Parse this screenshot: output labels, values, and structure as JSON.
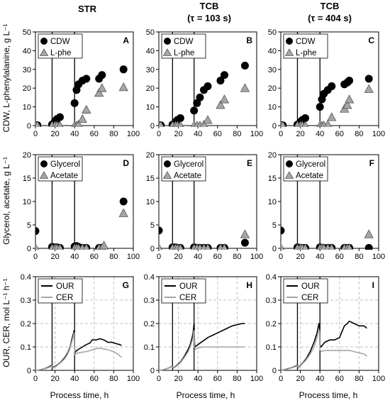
{
  "column_titles": [
    {
      "line1": "STR",
      "line2": ""
    },
    {
      "line1": "TCB",
      "line2": "(τ = 103 s)"
    },
    {
      "line1": "TCB",
      "line2": "(τ = 404 s)"
    }
  ],
  "row_ylabels": [
    "CDW, L-phenylalanine, g L⁻¹",
    "Glycerol, acetate, g L⁻¹",
    "OUR, CER, mol L⁻¹ h⁻¹"
  ],
  "xlabel": "Process time, h",
  "colors": {
    "cdw": "#000000",
    "lphe": "#a6a6a6",
    "our": "#000000",
    "cer": "#a6a6a6",
    "grid": "#bfbfbf"
  },
  "chart_data": [
    {
      "type": "scatter",
      "panel": "A",
      "row": 0,
      "col": 0,
      "xlim": [
        0,
        100
      ],
      "ylim": [
        0,
        50
      ],
      "xticks": [
        0,
        20,
        40,
        60,
        80,
        100
      ],
      "yticks": [
        0,
        10,
        20,
        30,
        40,
        50
      ],
      "ytick_labels": [
        "0",
        "10",
        "20",
        "30",
        "40",
        "50"
      ],
      "vlines": [
        17,
        40
      ],
      "series": [
        {
          "name": "CDW",
          "marker": "circle",
          "x": [
            0,
            2,
            17,
            20,
            22,
            25,
            40,
            42,
            44,
            48,
            52,
            65,
            68,
            90
          ],
          "y": [
            0.2,
            0.2,
            0.6,
            2.5,
            3.5,
            4.5,
            12,
            19,
            22,
            24,
            25,
            25,
            27,
            30
          ]
        },
        {
          "name": "L-phe",
          "marker": "triangle",
          "x": [
            0,
            2,
            17,
            20,
            22,
            25,
            40,
            42,
            44,
            48,
            52,
            65,
            68,
            90
          ],
          "y": [
            0,
            0,
            0,
            0,
            0,
            0,
            0,
            0,
            0.5,
            3.5,
            8.5,
            17.5,
            20,
            20.5
          ]
        }
      ]
    },
    {
      "type": "scatter",
      "panel": "B",
      "row": 0,
      "col": 1,
      "xlim": [
        0,
        100
      ],
      "ylim": [
        0,
        50
      ],
      "xticks": [
        0,
        20,
        40,
        60,
        80,
        100
      ],
      "yticks": [
        0,
        10,
        20,
        30,
        40,
        50
      ],
      "ytick_labels": [
        "0",
        "10",
        "20",
        "30",
        "40",
        "50"
      ],
      "vlines": [
        14,
        36
      ],
      "series": [
        {
          "name": "CDW",
          "marker": "circle",
          "x": [
            0,
            2,
            14,
            17,
            19,
            22,
            36,
            39,
            42,
            46,
            50,
            63,
            67,
            88
          ],
          "y": [
            0.2,
            0.2,
            0.5,
            2,
            3,
            4,
            8,
            12,
            15,
            19,
            21,
            24,
            27,
            32
          ]
        },
        {
          "name": "L-phe",
          "marker": "triangle",
          "x": [
            0,
            2,
            14,
            17,
            19,
            22,
            36,
            39,
            42,
            46,
            50,
            63,
            67,
            88
          ],
          "y": [
            0,
            0,
            0,
            0,
            0,
            0,
            0,
            0,
            0,
            0.5,
            3,
            11,
            14,
            20
          ]
        }
      ]
    },
    {
      "type": "scatter",
      "panel": "C",
      "row": 0,
      "col": 2,
      "xlim": [
        0,
        100
      ],
      "ylim": [
        0,
        50
      ],
      "xticks": [
        0,
        20,
        40,
        60,
        80,
        100
      ],
      "yticks": [
        0,
        10,
        20,
        30,
        40,
        50
      ],
      "ytick_labels": [
        "0",
        "10",
        "20",
        "30",
        "40",
        "50"
      ],
      "vlines": [
        17,
        40
      ],
      "series": [
        {
          "name": "CDW",
          "marker": "circle",
          "x": [
            0,
            2,
            17,
            20,
            22,
            25,
            40,
            42,
            44,
            48,
            52,
            65,
            68,
            70,
            90
          ],
          "y": [
            0.2,
            0.2,
            0.5,
            2,
            3,
            4,
            10,
            14,
            17,
            19,
            21,
            22,
            23,
            24,
            25
          ]
        },
        {
          "name": "L-phe",
          "marker": "triangle",
          "x": [
            0,
            2,
            17,
            20,
            22,
            25,
            40,
            42,
            44,
            48,
            52,
            65,
            68,
            70,
            90
          ],
          "y": [
            0,
            0,
            0,
            0,
            0,
            0,
            0,
            0,
            0,
            0.5,
            4.5,
            9,
            11,
            14,
            19.5
          ]
        }
      ]
    },
    {
      "type": "scatter",
      "panel": "D",
      "row": 1,
      "col": 0,
      "xlim": [
        0,
        100
      ],
      "ylim": [
        0,
        20
      ],
      "xticks": [
        0,
        20,
        40,
        60,
        80,
        100
      ],
      "yticks": [
        0,
        5,
        10,
        15,
        20
      ],
      "ytick_labels": [
        "0",
        "5",
        "10",
        "15",
        "20"
      ],
      "vlines": [
        17,
        40
      ],
      "series": [
        {
          "name": "Glycerol",
          "marker": "circle",
          "x": [
            0,
            17,
            20,
            22,
            25,
            40,
            42,
            44,
            48,
            52,
            65,
            68,
            90
          ],
          "y": [
            3.7,
            0.3,
            0.2,
            0.2,
            0.1,
            0.4,
            0.5,
            0.3,
            0.1,
            0.1,
            0.1,
            0.1,
            10
          ]
        },
        {
          "name": "Acetate",
          "marker": "triangle",
          "x": [
            0,
            17,
            20,
            22,
            25,
            40,
            42,
            44,
            48,
            52,
            65,
            68,
            70,
            90
          ],
          "y": [
            0.1,
            0,
            0,
            0,
            0,
            0,
            0,
            0,
            0,
            0,
            0,
            0.1,
            0.6,
            7.5
          ]
        }
      ]
    },
    {
      "type": "scatter",
      "panel": "E",
      "row": 1,
      "col": 1,
      "xlim": [
        0,
        100
      ],
      "ylim": [
        0,
        20
      ],
      "xticks": [
        0,
        20,
        40,
        60,
        80,
        100
      ],
      "yticks": [
        0,
        5,
        10,
        15,
        20
      ],
      "ytick_labels": [
        "0",
        "5",
        "10",
        "15",
        "20"
      ],
      "vlines": [
        14,
        36
      ],
      "series": [
        {
          "name": "Glycerol",
          "marker": "circle",
          "x": [
            0,
            14,
            17,
            19,
            22,
            36,
            39,
            42,
            46,
            50,
            63,
            67,
            88
          ],
          "y": [
            3.8,
            0.2,
            0.2,
            0.1,
            0.1,
            0.2,
            0.1,
            0.1,
            0.1,
            0.1,
            0.1,
            0.1,
            1.2
          ]
        },
        {
          "name": "Acetate",
          "marker": "triangle",
          "x": [
            0,
            14,
            17,
            19,
            22,
            36,
            39,
            42,
            46,
            50,
            63,
            67,
            88
          ],
          "y": [
            0.1,
            0,
            0,
            0,
            0,
            0,
            0,
            0,
            0,
            0,
            0,
            0,
            3
          ]
        }
      ]
    },
    {
      "type": "scatter",
      "panel": "F",
      "row": 1,
      "col": 2,
      "xlim": [
        0,
        100
      ],
      "ylim": [
        0,
        20
      ],
      "xticks": [
        0,
        20,
        40,
        60,
        80,
        100
      ],
      "yticks": [
        0,
        5,
        10,
        15,
        20
      ],
      "ytick_labels": [
        "0",
        "5",
        "10",
        "15",
        "20"
      ],
      "vlines": [
        17,
        40
      ],
      "series": [
        {
          "name": "Glycerol",
          "marker": "circle",
          "x": [
            0,
            17,
            20,
            22,
            25,
            40,
            42,
            44,
            48,
            52,
            65,
            68,
            70,
            90
          ],
          "y": [
            3.8,
            0.2,
            0.1,
            0.1,
            0.1,
            0.2,
            0.1,
            0.1,
            0.1,
            0.1,
            0.1,
            0.1,
            0.1,
            0.1
          ]
        },
        {
          "name": "Acetate",
          "marker": "triangle",
          "x": [
            0,
            17,
            20,
            22,
            25,
            40,
            42,
            44,
            48,
            52,
            65,
            68,
            70,
            90
          ],
          "y": [
            0.1,
            0,
            0,
            0,
            0,
            0,
            0,
            0,
            0,
            0,
            0,
            0,
            0,
            3
          ]
        }
      ]
    },
    {
      "type": "line",
      "panel": "G",
      "row": 2,
      "col": 0,
      "xlim": [
        0,
        100
      ],
      "ylim": [
        0,
        0.4
      ],
      "xticks": [
        0,
        20,
        40,
        60,
        80,
        100
      ],
      "yticks": [
        0,
        0.1,
        0.2,
        0.3,
        0.4
      ],
      "ytick_labels": [
        "0",
        "0.1",
        "0.2",
        "0.3",
        "0.4"
      ],
      "vlines": [
        17,
        40
      ],
      "series": [
        {
          "name": "OUR",
          "x": [
            0,
            5,
            10,
            14,
            16,
            17,
            18,
            22,
            26,
            30,
            33,
            35,
            36,
            37,
            38,
            39,
            39.5,
            40,
            40.5,
            41,
            44,
            48,
            52,
            56,
            58,
            62,
            66,
            70,
            74,
            78,
            82,
            86,
            88
          ],
          "y": [
            0,
            0.003,
            0.008,
            0.015,
            0.02,
            0.022,
            0.012,
            0.022,
            0.036,
            0.055,
            0.075,
            0.095,
            0.11,
            0.13,
            0.145,
            0.16,
            0.17,
            0.1,
            0.07,
            0.08,
            0.09,
            0.1,
            0.11,
            0.118,
            0.13,
            0.13,
            0.135,
            0.13,
            0.12,
            0.12,
            0.115,
            0.11,
            0.107
          ]
        },
        {
          "name": "CER",
          "x": [
            0,
            5,
            10,
            14,
            16,
            17,
            18,
            22,
            26,
            30,
            33,
            35,
            36,
            37,
            38,
            39,
            39.5,
            40,
            40.5,
            41,
            44,
            48,
            52,
            56,
            60,
            64,
            68,
            72,
            76,
            80,
            84,
            88
          ],
          "y": [
            0,
            0.003,
            0.007,
            0.013,
            0.017,
            0.02,
            0.01,
            0.02,
            0.034,
            0.05,
            0.07,
            0.09,
            0.105,
            0.12,
            0.135,
            0.15,
            0.16,
            0.09,
            0.065,
            0.07,
            0.075,
            0.078,
            0.08,
            0.085,
            0.09,
            0.095,
            0.093,
            0.09,
            0.085,
            0.08,
            0.07,
            0.055
          ]
        }
      ]
    },
    {
      "type": "line",
      "panel": "H",
      "row": 2,
      "col": 1,
      "xlim": [
        0,
        100
      ],
      "ylim": [
        0,
        0.4
      ],
      "xticks": [
        0,
        20,
        40,
        60,
        80,
        100
      ],
      "yticks": [
        0,
        0.1,
        0.2,
        0.3,
        0.4
      ],
      "ytick_labels": [
        "0",
        "0.1",
        "0.2",
        "0.3",
        "0.4"
      ],
      "vlines": [
        14,
        36
      ],
      "series": [
        {
          "name": "OUR",
          "x": [
            0,
            5,
            10,
            13,
            14,
            15,
            18,
            22,
            26,
            30,
            32,
            34,
            35,
            35.5,
            36,
            36.5,
            37,
            40,
            45,
            50,
            55,
            60,
            65,
            70,
            75,
            80,
            85,
            88
          ],
          "y": [
            0,
            0.003,
            0.01,
            0.016,
            0.02,
            0.01,
            0.02,
            0.035,
            0.06,
            0.09,
            0.11,
            0.14,
            0.16,
            0.18,
            0.2,
            0.12,
            0.1,
            0.11,
            0.125,
            0.14,
            0.15,
            0.16,
            0.17,
            0.18,
            0.19,
            0.195,
            0.2,
            0.2
          ]
        },
        {
          "name": "CER",
          "x": [
            0,
            5,
            10,
            13,
            14,
            15,
            18,
            22,
            26,
            30,
            32,
            34,
            35,
            35.5,
            36,
            36.5,
            37,
            40,
            45,
            50,
            55,
            60,
            65,
            70,
            75,
            80,
            85,
            88
          ],
          "y": [
            0,
            0.003,
            0.009,
            0.015,
            0.018,
            0.009,
            0.018,
            0.032,
            0.055,
            0.08,
            0.1,
            0.125,
            0.14,
            0.16,
            0.17,
            0.1,
            0.09,
            0.095,
            0.1,
            0.1,
            0.1,
            0.1,
            0.1,
            0.1,
            0.1,
            0.1,
            0.1,
            0.1
          ]
        }
      ]
    },
    {
      "type": "line",
      "panel": "I",
      "row": 2,
      "col": 2,
      "xlim": [
        0,
        100
      ],
      "ylim": [
        0,
        0.4
      ],
      "xticks": [
        0,
        20,
        40,
        60,
        80,
        100
      ],
      "yticks": [
        0,
        0.1,
        0.2,
        0.3,
        0.4
      ],
      "ytick_labels": [
        "0",
        "0.1",
        "0.2",
        "0.3",
        "0.4"
      ],
      "vlines": [
        17,
        40
      ],
      "series": [
        {
          "name": "OUR",
          "x": [
            0,
            5,
            10,
            15,
            16,
            17,
            18,
            22,
            26,
            30,
            34,
            37,
            38,
            39,
            39.5,
            40,
            41,
            45,
            50,
            55,
            60,
            63,
            65,
            68,
            70,
            75,
            80,
            85,
            88
          ],
          "y": [
            0,
            0.004,
            0.01,
            0.018,
            0.02,
            0.022,
            0.012,
            0.03,
            0.05,
            0.08,
            0.12,
            0.16,
            0.18,
            0.2,
            0.2,
            0.11,
            0.1,
            0.12,
            0.13,
            0.13,
            0.14,
            0.17,
            0.19,
            0.2,
            0.21,
            0.2,
            0.19,
            0.19,
            0.18
          ]
        },
        {
          "name": "CER",
          "x": [
            0,
            5,
            10,
            15,
            16,
            17,
            18,
            22,
            26,
            30,
            34,
            37,
            38,
            39,
            39.5,
            40,
            41,
            45,
            50,
            55,
            60,
            65,
            70,
            75,
            80,
            85,
            88
          ],
          "y": [
            0,
            0.003,
            0.009,
            0.016,
            0.018,
            0.02,
            0.01,
            0.028,
            0.045,
            0.07,
            0.1,
            0.14,
            0.16,
            0.17,
            0.17,
            0.09,
            0.08,
            0.085,
            0.085,
            0.085,
            0.085,
            0.085,
            0.085,
            0.08,
            0.075,
            0.07,
            0.06
          ]
        }
      ]
    }
  ]
}
